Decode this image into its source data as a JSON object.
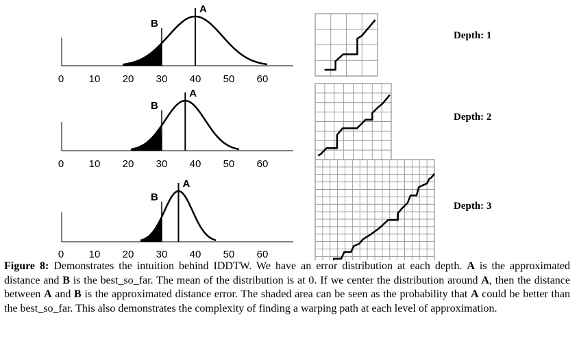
{
  "panels": [
    {
      "label_A": "A",
      "label_B": "B",
      "mean": 40,
      "sd": 8,
      "best_so_far": 30
    },
    {
      "label_A": "A",
      "label_B": "B",
      "mean": 37,
      "sd": 6,
      "best_so_far": 30
    },
    {
      "label_A": "A",
      "label_B": "B",
      "mean": 35,
      "sd": 4.2,
      "best_so_far": 30
    }
  ],
  "x_ticks": [
    "0",
    "10",
    "20",
    "30",
    "40",
    "50",
    "60"
  ],
  "grids": [
    {
      "depth_label": "Depth: 1",
      "cells": 4
    },
    {
      "depth_label": "Depth: 2",
      "cells": 8
    },
    {
      "depth_label": "Depth: 3",
      "cells": 16
    }
  ],
  "caption": {
    "figure_label": "Figure 8:",
    "segments": [
      {
        "text": " Demonstrates the intuition behind IDDTW. We have an error distribution at each depth. ",
        "bold": false
      },
      {
        "text": "A",
        "bold": true
      },
      {
        "text": " is the approximated distance and ",
        "bold": false
      },
      {
        "text": "B",
        "bold": true
      },
      {
        "text": " is the best_so_far.  The mean of the distribution is at 0. If we center the distribution around ",
        "bold": false
      },
      {
        "text": "A",
        "bold": true
      },
      {
        "text": ", then the distance between ",
        "bold": false
      },
      {
        "text": "A",
        "bold": true
      },
      {
        "text": " and ",
        "bold": false
      },
      {
        "text": "B",
        "bold": true
      },
      {
        "text": " is the approximated distance error. The shaded area can be seen as the probability that ",
        "bold": false
      },
      {
        "text": "A",
        "bold": true
      },
      {
        "text": " could be better than the best_so_far. This also demonstrates the complexity of finding a warping path at each level of approximation.",
        "bold": false
      }
    ]
  }
}
